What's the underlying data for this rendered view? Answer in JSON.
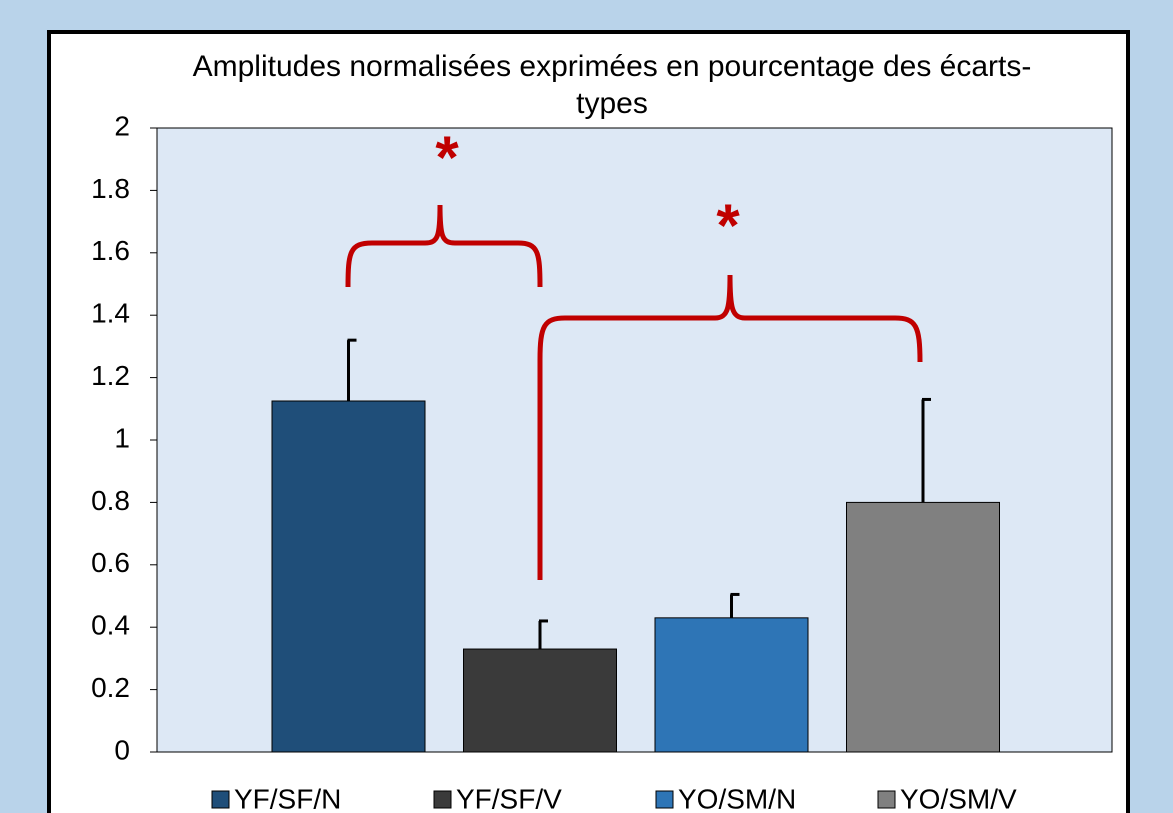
{
  "chart_data": {
    "type": "bar",
    "title": "Amplitudes normalisées exprimées en pourcentage des écarts-types",
    "categories": [
      null
    ],
    "series": [
      {
        "name": "YF/SF/N",
        "color": "#1f4e79",
        "values": [
          1.125
        ],
        "errors": [
          0.195
        ]
      },
      {
        "name": "YF/SF/V",
        "color": "#3a3a3a",
        "values": [
          0.33
        ],
        "errors": [
          0.09
        ]
      },
      {
        "name": "YO/SM/N",
        "color": "#2e75b6",
        "values": [
          0.43
        ],
        "errors": [
          0.075
        ]
      },
      {
        "name": "YO/SM/V",
        "color": "#808080",
        "values": [
          0.8
        ],
        "errors": [
          0.33
        ]
      }
    ],
    "annotations": [
      {
        "text": "*"
      },
      {
        "text": "*"
      }
    ],
    "ylim": [
      0,
      2
    ],
    "yticks": [
      0,
      0.2,
      0.4,
      0.6,
      0.8,
      1,
      1.2,
      1.4,
      1.6,
      1.8,
      2
    ],
    "legend": "bottom"
  }
}
